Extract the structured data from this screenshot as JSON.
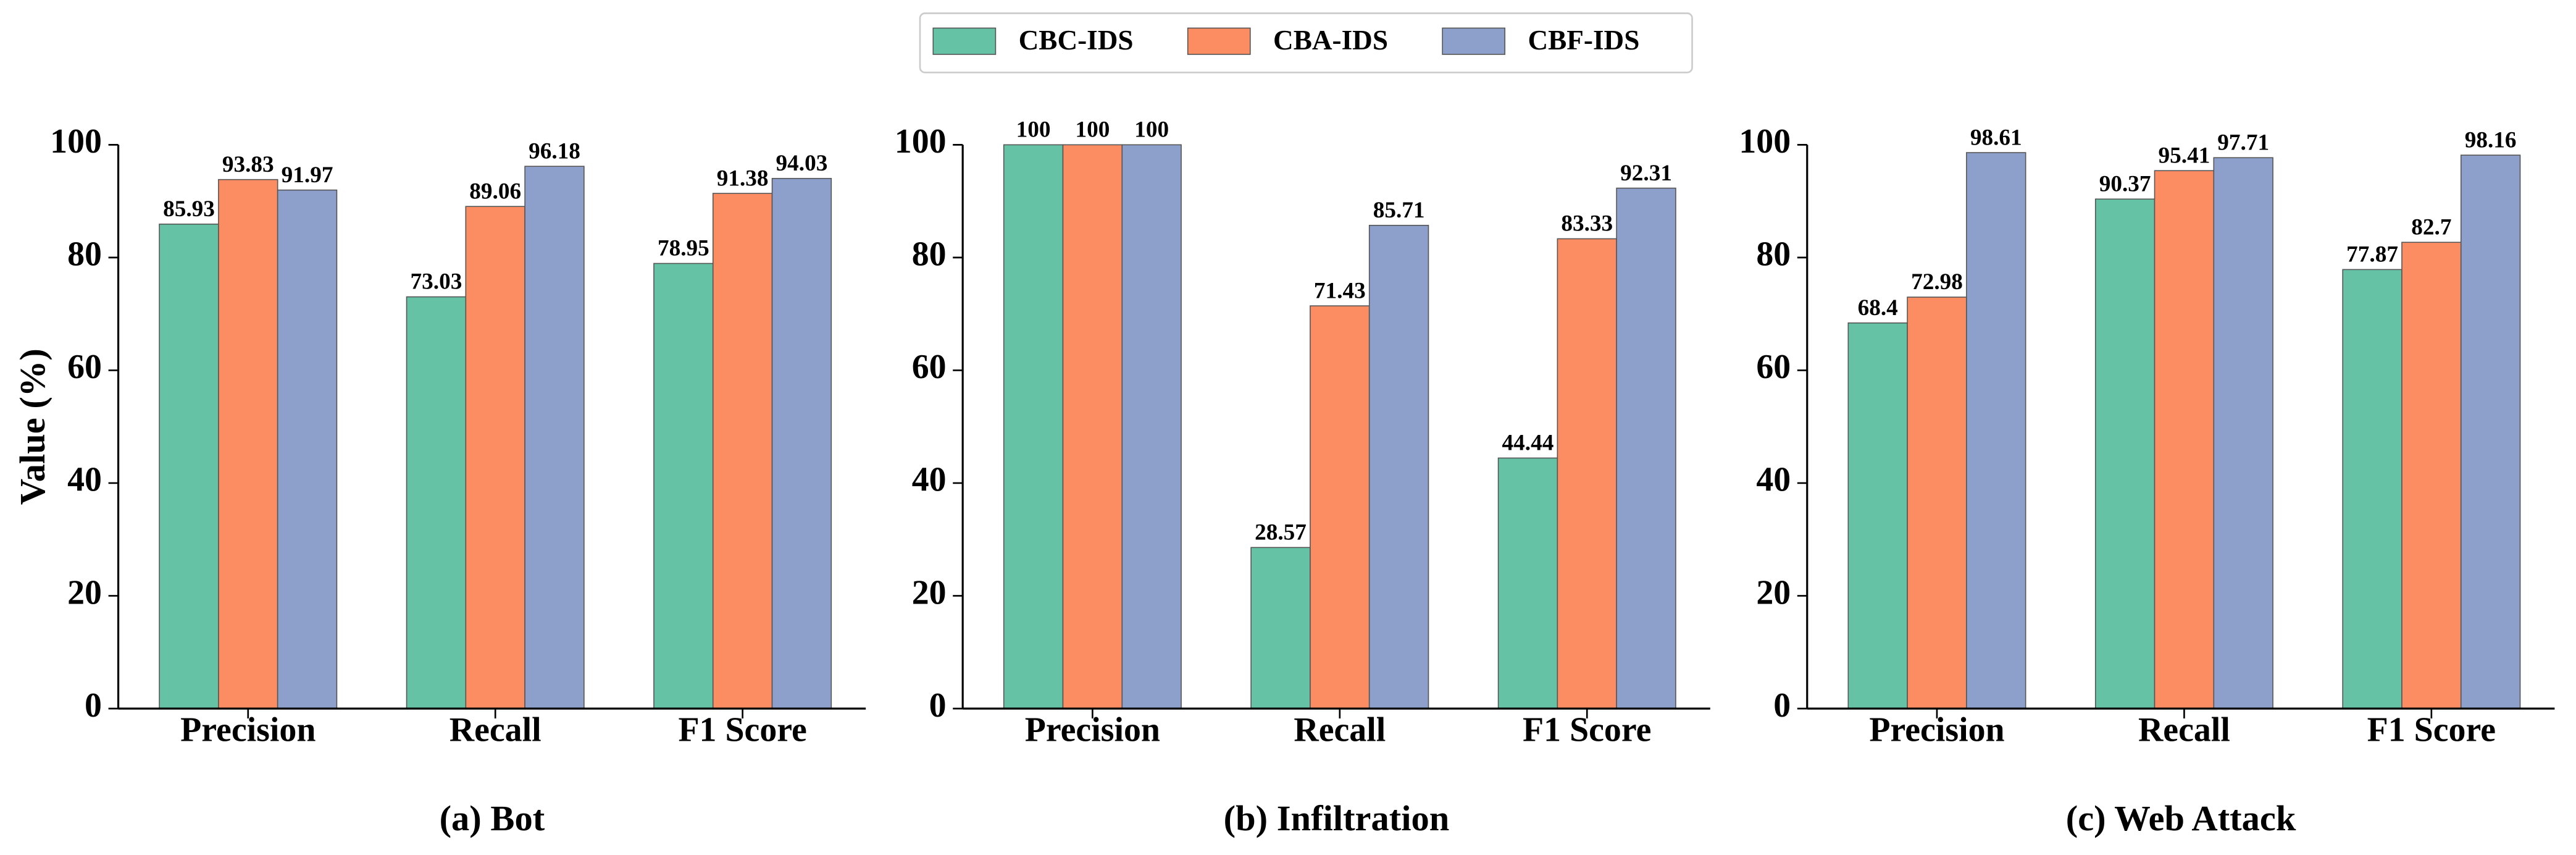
{
  "chart_data": [
    {
      "type": "bar",
      "title": "(a) Bot",
      "ylabel": "Value (%)",
      "categories": [
        "Precision",
        "Recall",
        "F1 Score"
      ],
      "series": [
        {
          "name": "CBC-IDS",
          "color": "#66c2a5",
          "values": [
            85.93,
            73.03,
            78.95
          ]
        },
        {
          "name": "CBA-IDS",
          "color": "#fc8d62",
          "values": [
            93.83,
            89.06,
            91.38
          ]
        },
        {
          "name": "CBF-IDS",
          "color": "#8da0cb",
          "values": [
            91.97,
            96.18,
            94.03
          ]
        }
      ],
      "ylim": [
        0,
        100
      ],
      "yticks": [
        0,
        20,
        40,
        60,
        80,
        100
      ]
    },
    {
      "type": "bar",
      "title": "(b) Infiltration",
      "categories": [
        "Precision",
        "Recall",
        "F1 Score"
      ],
      "series": [
        {
          "name": "CBC-IDS",
          "color": "#66c2a5",
          "values": [
            100,
            28.57,
            44.44
          ]
        },
        {
          "name": "CBA-IDS",
          "color": "#fc8d62",
          "values": [
            100,
            71.43,
            83.33
          ]
        },
        {
          "name": "CBF-IDS",
          "color": "#8da0cb",
          "values": [
            100,
            85.71,
            92.31
          ]
        }
      ],
      "ylim": [
        0,
        100
      ],
      "yticks": [
        0,
        20,
        40,
        60,
        80,
        100
      ]
    },
    {
      "type": "bar",
      "title": "(c) Web Attack",
      "categories": [
        "Precision",
        "Recall",
        "F1 Score"
      ],
      "series": [
        {
          "name": "CBC-IDS",
          "color": "#66c2a5",
          "values": [
            68.4,
            90.37,
            77.87
          ]
        },
        {
          "name": "CBA-IDS",
          "color": "#fc8d62",
          "values": [
            72.98,
            95.41,
            82.7
          ]
        },
        {
          "name": "CBF-IDS",
          "color": "#8da0cb",
          "values": [
            98.61,
            97.71,
            98.16
          ]
        }
      ],
      "ylim": [
        0,
        100
      ],
      "yticks": [
        0,
        20,
        40,
        60,
        80,
        100
      ]
    }
  ]
}
